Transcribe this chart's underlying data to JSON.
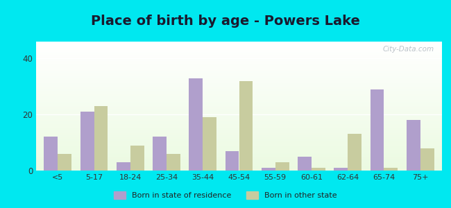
{
  "title": "Place of birth by age - Powers Lake",
  "categories": [
    "<5",
    "5-17",
    "18-24",
    "25-34",
    "35-44",
    "45-54",
    "55-59",
    "60-61",
    "62-64",
    "65-74",
    "75+"
  ],
  "born_in_state": [
    12,
    21,
    3,
    12,
    33,
    7,
    1,
    5,
    1,
    29,
    18
  ],
  "born_in_other": [
    6,
    23,
    9,
    6,
    19,
    32,
    3,
    1,
    13,
    1,
    8
  ],
  "color_state": "#b09fcc",
  "color_other": "#c8cc9f",
  "ylim": [
    0,
    46
  ],
  "yticks": [
    0,
    20,
    40
  ],
  "bar_width": 0.38,
  "title_fontsize": 14,
  "bg_color": "#00e8f0",
  "legend_label_state": "Born in state of residence",
  "legend_label_other": "Born in other state",
  "watermark": "City-Data.com"
}
